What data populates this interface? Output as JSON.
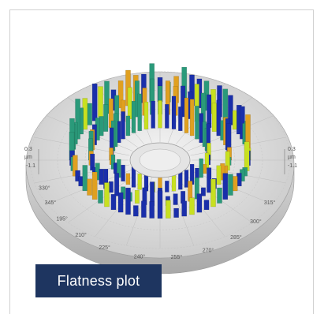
{
  "caption": {
    "label": "Flatness plot"
  },
  "chart_data": {
    "type": "3d-polar-bar",
    "angle_ticks": [
      "330°",
      "345°",
      "195°",
      "210°",
      "225°",
      "240°",
      "255°",
      "270°",
      "285°",
      "300°",
      "315°"
    ],
    "left_axis": {
      "top": "0.3",
      "unit": "µm",
      "bottom": "-1.1"
    },
    "right_axis": {
      "top": "0.3",
      "unit": "µm",
      "bottom": "-1.1"
    },
    "rings": 3,
    "colors": {
      "high": "#1a2faa",
      "mid": "#2a9a7a",
      "low": "#c8e020",
      "accent": "#e0a020",
      "base": "#d8d8d8"
    }
  }
}
